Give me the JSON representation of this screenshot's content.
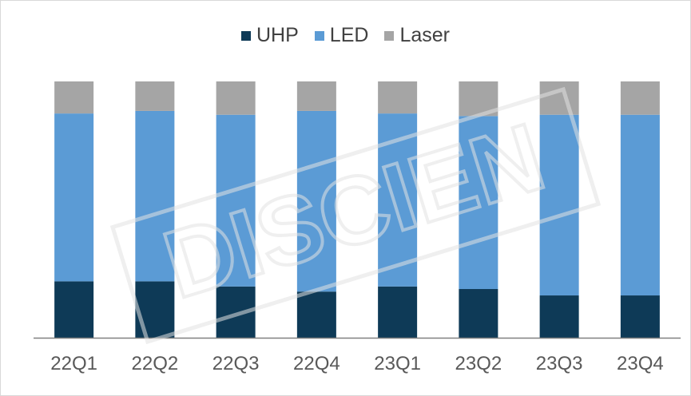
{
  "chart_data": {
    "type": "bar",
    "stacked": true,
    "normalized_100_percent": true,
    "title": "",
    "xlabel": "",
    "ylabel": "",
    "ylim": [
      0,
      100
    ],
    "grid": false,
    "y_axis_visible": false,
    "legend_position": "top-center",
    "categories": [
      "22Q1",
      "22Q2",
      "22Q3",
      "22Q4",
      "23Q1",
      "23Q2",
      "23Q3",
      "23Q4"
    ],
    "series": [
      {
        "name": "UHP",
        "color": "#0e3a57",
        "values": [
          22,
          22,
          20,
          18,
          20,
          19,
          16.5,
          16.5
        ]
      },
      {
        "name": "LED",
        "color": "#5b9bd5",
        "values": [
          65.5,
          66.5,
          67,
          70.5,
          67.5,
          67.5,
          70.5,
          70.5
        ]
      },
      {
        "name": "Laser",
        "color": "#a5a5a5",
        "values": [
          12.5,
          11.5,
          13,
          11.5,
          12.5,
          13.5,
          13,
          13
        ]
      }
    ]
  },
  "watermark": {
    "text": "DISCIEN",
    "color": "#e2e2e2"
  }
}
